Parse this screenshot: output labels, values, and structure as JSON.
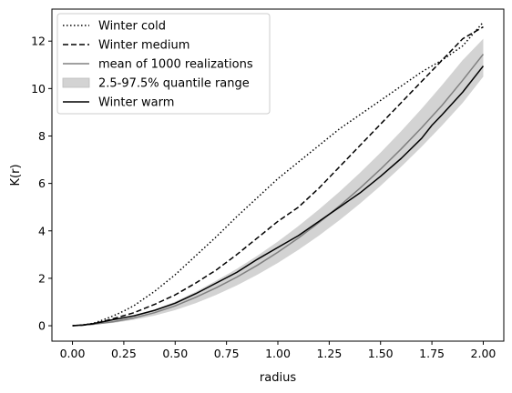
{
  "chart_data": {
    "type": "line",
    "xlabel": "radius",
    "ylabel": "K(r)",
    "xlim": [
      -0.1,
      2.1
    ],
    "ylim": [
      -0.65,
      13.35
    ],
    "x_ticks": [
      0.0,
      0.25,
      0.5,
      0.75,
      1.0,
      1.25,
      1.5,
      1.75,
      2.0
    ],
    "x_tick_labels": [
      "0.00",
      "0.25",
      "0.50",
      "0.75",
      "1.00",
      "1.25",
      "1.50",
      "1.75",
      "2.00"
    ],
    "y_ticks": [
      0,
      2,
      4,
      6,
      8,
      10,
      12
    ],
    "y_tick_labels": [
      "0",
      "2",
      "4",
      "6",
      "8",
      "10",
      "12"
    ],
    "grid": false,
    "legend_position": "top-left",
    "legend": [
      "Winter cold",
      "Winter medium",
      "mean of 1000 realizations",
      "2.5-97.5% quantile range",
      "Winter warm"
    ],
    "series": [
      {
        "name": "Winter cold",
        "color": "#000000",
        "style": "dotted",
        "x": [
          0,
          0.05,
          0.1,
          0.15,
          0.2,
          0.25,
          0.3,
          0.4,
          0.5,
          0.6,
          0.7,
          0.8,
          0.9,
          1.0,
          1.1,
          1.2,
          1.3,
          1.4,
          1.5,
          1.6,
          1.7,
          1.8,
          1.9,
          2.0
        ],
        "y": [
          0,
          0.03,
          0.1,
          0.25,
          0.42,
          0.62,
          0.85,
          1.45,
          2.15,
          2.95,
          3.75,
          4.6,
          5.4,
          6.2,
          6.9,
          7.6,
          8.3,
          8.9,
          9.5,
          10.1,
          10.7,
          11.2,
          11.8,
          12.8
        ]
      },
      {
        "name": "Winter medium",
        "color": "#000000",
        "style": "dashed",
        "x": [
          0,
          0.05,
          0.1,
          0.15,
          0.2,
          0.3,
          0.4,
          0.5,
          0.6,
          0.7,
          0.8,
          0.9,
          1.0,
          1.1,
          1.2,
          1.3,
          1.4,
          1.5,
          1.6,
          1.7,
          1.8,
          1.9,
          2.0
        ],
        "y": [
          0,
          0.02,
          0.08,
          0.18,
          0.3,
          0.55,
          0.9,
          1.3,
          1.8,
          2.35,
          3.0,
          3.7,
          4.4,
          5.0,
          5.8,
          6.7,
          7.6,
          8.5,
          9.4,
          10.3,
          11.2,
          12.1,
          12.6
        ]
      },
      {
        "name": "mean of 1000 realizations",
        "color": "#808080",
        "style": "solid",
        "x": [
          0,
          0.1,
          0.2,
          0.3,
          0.4,
          0.5,
          0.6,
          0.7,
          0.8,
          0.9,
          1.0,
          1.1,
          1.2,
          1.3,
          1.4,
          1.5,
          1.6,
          1.7,
          1.8,
          1.9,
          2.0
        ],
        "y": [
          0,
          0.06,
          0.17,
          0.33,
          0.55,
          0.84,
          1.2,
          1.6,
          2.05,
          2.55,
          3.1,
          3.7,
          4.35,
          5.05,
          5.8,
          6.6,
          7.45,
          8.35,
          9.3,
          10.35,
          11.45
        ],
        "band_low": [
          0,
          0.04,
          0.12,
          0.25,
          0.43,
          0.66,
          0.95,
          1.3,
          1.7,
          2.15,
          2.65,
          3.2,
          3.8,
          4.45,
          5.15,
          5.9,
          6.7,
          7.55,
          8.45,
          9.4,
          10.5
        ],
        "band_high": [
          0,
          0.09,
          0.23,
          0.42,
          0.68,
          1.02,
          1.43,
          1.9,
          2.4,
          2.95,
          3.55,
          4.2,
          4.9,
          5.65,
          6.45,
          7.3,
          8.2,
          9.15,
          10.15,
          11.2,
          12.1
        ]
      },
      {
        "name": "Winter warm",
        "color": "#000000",
        "style": "solid",
        "x": [
          0,
          0.05,
          0.1,
          0.15,
          0.2,
          0.3,
          0.4,
          0.5,
          0.6,
          0.7,
          0.8,
          0.9,
          1.0,
          1.05,
          1.1,
          1.2,
          1.3,
          1.4,
          1.5,
          1.6,
          1.7,
          1.75,
          1.8,
          1.9,
          2.0
        ],
        "y": [
          0,
          0.03,
          0.09,
          0.17,
          0.26,
          0.42,
          0.65,
          0.95,
          1.35,
          1.8,
          2.25,
          2.8,
          3.3,
          3.55,
          3.8,
          4.4,
          5.0,
          5.6,
          6.3,
          7.05,
          7.9,
          8.45,
          8.9,
          9.85,
          10.95
        ]
      }
    ]
  }
}
